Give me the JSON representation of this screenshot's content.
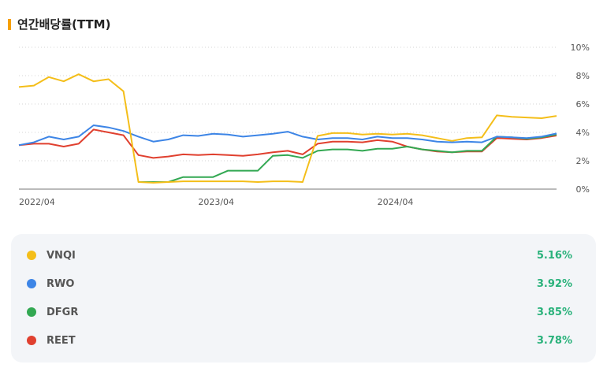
{
  "title": "연간배당률(TTM)",
  "colors": {
    "VNQI": "#f4be19",
    "RWO": "#3d85e6",
    "DFGR": "#32a852",
    "REET": "#e0402f"
  },
  "legend": [
    {
      "name": "VNQI",
      "value": "5.16%",
      "color": "#f4be19"
    },
    {
      "name": "RWO",
      "value": "3.92%",
      "color": "#3d85e6"
    },
    {
      "name": "DFGR",
      "value": "3.85%",
      "color": "#32a852"
    },
    {
      "name": "REET",
      "value": "3.78%",
      "color": "#e0402f"
    }
  ],
  "chart_data": {
    "type": "line",
    "title": "연간배당률(TTM)",
    "x_tick_labels": [
      "2022/04",
      "2023/04",
      "2024/04"
    ],
    "y_tick_labels": [
      "0%",
      "2%",
      "4%",
      "6%",
      "8%",
      "10%"
    ],
    "ylim": [
      0,
      10
    ],
    "grid": "horizontal dotted",
    "legend_position": "below",
    "x": [
      "2022/04",
      "2022/05",
      "2022/06",
      "2022/07",
      "2022/08",
      "2022/09",
      "2022/10",
      "2022/11",
      "2022/12",
      "2023/01",
      "2023/02",
      "2023/03",
      "2023/04",
      "2023/05",
      "2023/06",
      "2023/07",
      "2023/08",
      "2023/09",
      "2023/10",
      "2023/11",
      "2023/12",
      "2024/01",
      "2024/02",
      "2024/03",
      "2024/04",
      "2024/05",
      "2024/06",
      "2024/07",
      "2024/08",
      "2024/09",
      "2024/10",
      "2024/11",
      "2024/12",
      "2025/01",
      "2025/02",
      "2025/03",
      "2025/04"
    ],
    "series": [
      {
        "name": "VNQI",
        "values": [
          7.2,
          7.3,
          7.9,
          7.6,
          8.1,
          7.6,
          7.75,
          6.9,
          0.5,
          0.45,
          0.5,
          0.55,
          0.55,
          0.55,
          0.55,
          0.55,
          0.5,
          0.55,
          0.55,
          0.5,
          3.75,
          3.95,
          3.95,
          3.85,
          3.9,
          3.85,
          3.9,
          3.8,
          3.6,
          3.4,
          3.6,
          3.65,
          5.2,
          5.1,
          5.05,
          5.0,
          5.16
        ]
      },
      {
        "name": "RWO",
        "values": [
          3.1,
          3.3,
          3.7,
          3.5,
          3.7,
          4.5,
          4.35,
          4.1,
          3.7,
          3.35,
          3.5,
          3.8,
          3.75,
          3.9,
          3.85,
          3.7,
          3.8,
          3.9,
          4.05,
          3.7,
          3.5,
          3.6,
          3.6,
          3.5,
          3.7,
          3.6,
          3.6,
          3.5,
          3.35,
          3.3,
          3.35,
          3.3,
          3.7,
          3.65,
          3.6,
          3.7,
          3.92
        ]
      },
      {
        "name": "DFGR",
        "values": [
          null,
          null,
          null,
          null,
          null,
          null,
          null,
          null,
          0.5,
          0.5,
          0.5,
          0.85,
          0.85,
          0.85,
          1.3,
          1.3,
          1.3,
          2.35,
          2.4,
          2.2,
          2.7,
          2.8,
          2.8,
          2.7,
          2.85,
          2.85,
          3.0,
          2.8,
          2.7,
          2.6,
          2.7,
          2.7,
          3.7,
          3.65,
          3.55,
          3.65,
          3.85
        ]
      },
      {
        "name": "REET",
        "values": [
          3.1,
          3.2,
          3.2,
          3.0,
          3.2,
          4.2,
          4.0,
          3.8,
          2.4,
          2.2,
          2.3,
          2.45,
          2.4,
          2.45,
          2.4,
          2.35,
          2.45,
          2.6,
          2.7,
          2.45,
          3.2,
          3.35,
          3.35,
          3.3,
          3.45,
          3.35,
          3.0,
          2.8,
          2.65,
          2.6,
          2.65,
          2.65,
          3.6,
          3.55,
          3.5,
          3.6,
          3.78
        ]
      }
    ]
  }
}
